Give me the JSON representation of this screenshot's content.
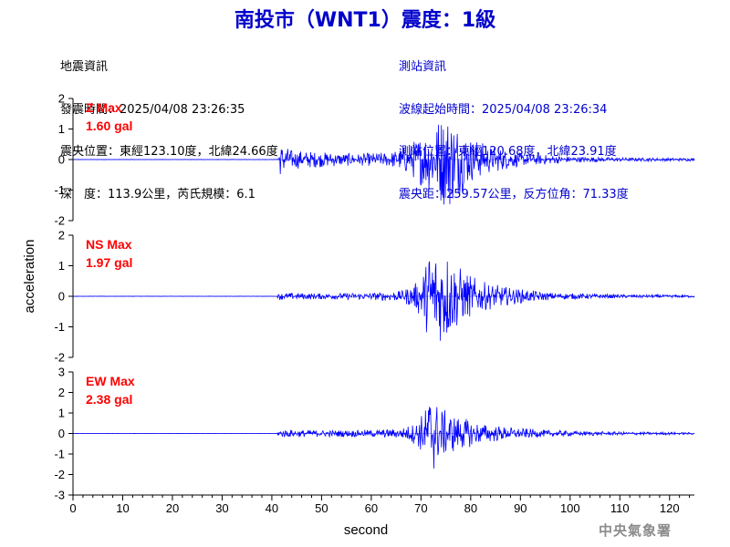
{
  "title": "南投市（WNT1）震度：1級",
  "quake_info": {
    "heading": "地震資訊",
    "origin_time": "發震時間：2025/04/08 23:26:35",
    "epicenter": "震央位置：東經123.10度，北緯24.66度",
    "depth_magnitude": "深　度：113.9公里，芮氏規模：6.1"
  },
  "station_info": {
    "heading": "測站資訊",
    "wave_start": "波線起始時間：2025/04/08 23:26:34",
    "station_location": "測站位置：東經120.68度，北緯23.91度",
    "distance_azimuth": "震央距：259.57公里，反方位角：71.33度"
  },
  "colors": {
    "trace": "#0000ff",
    "title": "#0000cc",
    "max_label": "#ff0000",
    "axis": "#000000",
    "logo": "#8c8c8c"
  },
  "logo_text": "中央氣象署",
  "chart_data": {
    "type": "line",
    "xlabel": "second",
    "ylabel": "acceleration",
    "xlim": [
      0,
      125
    ],
    "xticks": [
      0,
      10,
      20,
      30,
      40,
      50,
      60,
      70,
      80,
      90,
      100,
      110,
      120
    ],
    "xtick_labels": [
      "0",
      "10",
      "20",
      "30",
      "40",
      "50",
      "60",
      "70",
      "80",
      "90",
      "100",
      "110",
      "120"
    ],
    "grid": false,
    "channels": [
      {
        "label": "Z Max",
        "max_text": "1.60 gal",
        "ylim": [
          -2,
          2
        ],
        "yticks": [
          -2,
          -1,
          0,
          1,
          2
        ],
        "ytick_labels": [
          "-2",
          "-1",
          "0",
          "1",
          "2"
        ],
        "envelope": [
          [
            0,
            0.005
          ],
          [
            41,
            0.005
          ],
          [
            41.5,
            0.55
          ],
          [
            44,
            0.32
          ],
          [
            50,
            0.25
          ],
          [
            58,
            0.2
          ],
          [
            64,
            0.25
          ],
          [
            68,
            0.55
          ],
          [
            70,
            0.85
          ],
          [
            72,
            1.15
          ],
          [
            74,
            1.5
          ],
          [
            76,
            1.6
          ],
          [
            78,
            1.1
          ],
          [
            80,
            0.75
          ],
          [
            84,
            0.45
          ],
          [
            90,
            0.22
          ],
          [
            100,
            0.1
          ],
          [
            112,
            0.06
          ],
          [
            125,
            0.05
          ]
        ]
      },
      {
        "label": "NS Max",
        "max_text": "1.97 gal",
        "ylim": [
          -2,
          2
        ],
        "yticks": [
          -2,
          -1,
          0,
          1,
          2
        ],
        "ytick_labels": [
          "-2",
          "-1",
          "0",
          "1",
          "2"
        ],
        "envelope": [
          [
            0,
            0.005
          ],
          [
            41,
            0.005
          ],
          [
            41.5,
            0.12
          ],
          [
            50,
            0.1
          ],
          [
            60,
            0.12
          ],
          [
            66,
            0.18
          ],
          [
            69,
            0.45
          ],
          [
            71,
            1.1
          ],
          [
            72,
            1.97
          ],
          [
            74,
            1.5
          ],
          [
            75,
            1.7
          ],
          [
            77,
            1.1
          ],
          [
            79,
            0.8
          ],
          [
            82,
            0.5
          ],
          [
            88,
            0.28
          ],
          [
            96,
            0.12
          ],
          [
            110,
            0.06
          ],
          [
            125,
            0.04
          ]
        ]
      },
      {
        "label": "EW Max",
        "max_text": "2.38 gal",
        "ylim": [
          -3,
          3
        ],
        "yticks": [
          -3,
          -2,
          -1,
          0,
          1,
          2,
          3
        ],
        "ytick_labels": [
          "-3",
          "-2",
          "-1",
          "0",
          "1",
          "2",
          "3"
        ],
        "envelope": [
          [
            0,
            0.005
          ],
          [
            41,
            0.005
          ],
          [
            41.5,
            0.2
          ],
          [
            50,
            0.16
          ],
          [
            60,
            0.18
          ],
          [
            66,
            0.25
          ],
          [
            69,
            0.55
          ],
          [
            71,
            1.3
          ],
          [
            72,
            2.38
          ],
          [
            73,
            1.6
          ],
          [
            75,
            1.1
          ],
          [
            78,
            0.8
          ],
          [
            82,
            0.5
          ],
          [
            88,
            0.3
          ],
          [
            96,
            0.15
          ],
          [
            110,
            0.08
          ],
          [
            125,
            0.05
          ]
        ]
      }
    ]
  }
}
